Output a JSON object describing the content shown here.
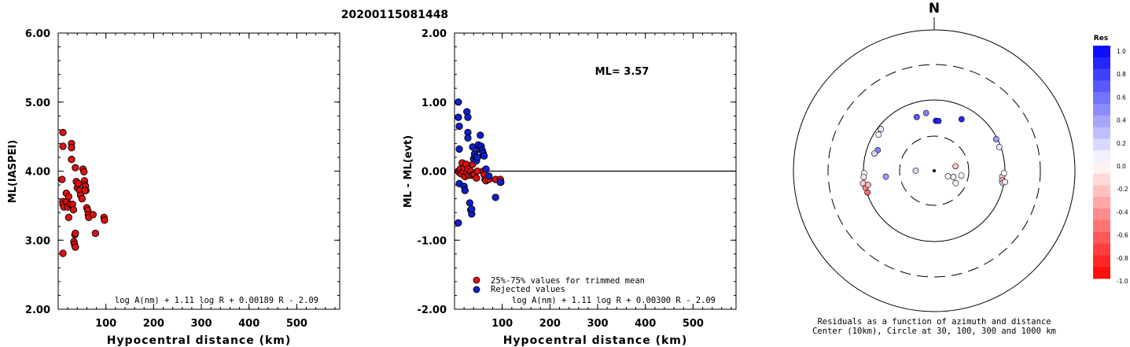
{
  "title": "20200115081448",
  "chart_data": [
    {
      "type": "scatter",
      "ylabel": "ML(IASPEI)",
      "xlabel": "Hypocentral distance (km)",
      "xlim": [
        0,
        590
      ],
      "ylim": [
        2.0,
        6.0
      ],
      "xticks": [
        "100",
        "200",
        "300",
        "400",
        "500"
      ],
      "yticks": [
        "2.00",
        "3.00",
        "4.00",
        "5.00",
        "6.00"
      ],
      "formula": "log A(nm) + 1.11 log R + 0.00189 R - 2.09",
      "grid": false,
      "series": [
        {
          "color": "#dd1111",
          "points": [
            [
              10,
              4.56
            ],
            [
              10,
              4.36
            ],
            [
              8,
              3.88
            ],
            [
              10,
              3.56
            ],
            [
              10,
              3.52
            ],
            [
              12,
              3.48
            ],
            [
              10,
              2.81
            ],
            [
              17,
              3.68
            ],
            [
              18,
              3.56
            ],
            [
              20,
              3.48
            ],
            [
              22,
              3.63
            ],
            [
              22,
              3.33
            ],
            [
              25,
              3.52
            ],
            [
              28,
              4.4
            ],
            [
              28,
              4.34
            ],
            [
              28,
              4.17
            ],
            [
              30,
              3.52
            ],
            [
              32,
              3.44
            ],
            [
              33,
              2.98
            ],
            [
              34,
              2.94
            ],
            [
              35,
              3.08
            ],
            [
              36,
              3.1
            ],
            [
              36,
              2.9
            ],
            [
              36,
              4.05
            ],
            [
              38,
              3.85
            ],
            [
              40,
              3.76
            ],
            [
              42,
              3.82
            ],
            [
              45,
              3.72
            ],
            [
              47,
              3.65
            ],
            [
              50,
              3.6
            ],
            [
              52,
              4.03
            ],
            [
              54,
              3.99
            ],
            [
              55,
              3.86
            ],
            [
              56,
              3.8
            ],
            [
              57,
              3.78
            ],
            [
              58,
              3.72
            ],
            [
              56,
              3.72
            ],
            [
              60,
              3.47
            ],
            [
              62,
              3.43
            ],
            [
              63,
              3.37
            ],
            [
              64,
              3.33
            ],
            [
              73,
              3.37
            ],
            [
              78,
              3.1
            ],
            [
              96,
              3.33
            ],
            [
              97,
              3.29
            ]
          ]
        }
      ]
    },
    {
      "type": "scatter",
      "ylabel": "ML - ML(evt)",
      "xlabel": "Hypocentral distance (km)",
      "xlim": [
        0,
        590
      ],
      "ylim": [
        -2.0,
        2.0
      ],
      "xticks": [
        "100",
        "200",
        "300",
        "400",
        "500"
      ],
      "yticks": [
        "-2.00",
        "-1.00",
        "0.00",
        "1.00",
        "2.00"
      ],
      "annotation": "ML= 3.57",
      "formula": "log A(nm) + 1.11 log R + 0.00300 R - 2.09",
      "reference_line": 0.0,
      "legend": "bottom-left",
      "series": [
        {
          "name": "25%-75% values for trimmed mean",
          "color": "#dd1111",
          "points": [
            [
              8,
              0.0
            ],
            [
              10,
              -0.02
            ],
            [
              12,
              0.03
            ],
            [
              14,
              -0.04
            ],
            [
              16,
              0.12
            ],
            [
              18,
              0.0
            ],
            [
              20,
              0.05
            ],
            [
              22,
              -0.08
            ],
            [
              24,
              0.1
            ],
            [
              26,
              -0.02
            ],
            [
              28,
              0.03
            ],
            [
              30,
              -0.06
            ],
            [
              34,
              0.0
            ],
            [
              36,
              -0.06
            ],
            [
              38,
              0.1
            ],
            [
              40,
              -0.05
            ],
            [
              42,
              -0.05
            ],
            [
              46,
              -0.1
            ],
            [
              48,
              0.0
            ],
            [
              60,
              0.0
            ],
            [
              62,
              -0.05
            ],
            [
              64,
              -0.12
            ],
            [
              66,
              -0.14
            ],
            [
              72,
              -0.12
            ],
            [
              86,
              -0.12
            ],
            [
              96,
              -0.12
            ],
            [
              97,
              -0.16
            ]
          ]
        },
        {
          "name": "Rejected values",
          "color": "#0f1fcc",
          "points": [
            [
              8,
              1.0
            ],
            [
              8,
              0.78
            ],
            [
              10,
              0.65
            ],
            [
              10,
              0.32
            ],
            [
              8,
              -0.75
            ],
            [
              10,
              -0.18
            ],
            [
              20,
              -0.22
            ],
            [
              22,
              -0.28
            ],
            [
              26,
              0.86
            ],
            [
              28,
              0.78
            ],
            [
              28,
              0.56
            ],
            [
              28,
              0.48
            ],
            [
              32,
              -0.46
            ],
            [
              34,
              -0.56
            ],
            [
              36,
              -0.62
            ],
            [
              36,
              -0.55
            ],
            [
              38,
              0.35
            ],
            [
              40,
              0.18
            ],
            [
              42,
              0.25
            ],
            [
              44,
              0.21
            ],
            [
              46,
              0.15
            ],
            [
              48,
              0.2
            ],
            [
              50,
              0.38
            ],
            [
              52,
              0.32
            ],
            [
              54,
              0.52
            ],
            [
              56,
              0.36
            ],
            [
              58,
              0.3
            ],
            [
              60,
              0.26
            ],
            [
              62,
              0.22
            ],
            [
              66,
              0.03
            ],
            [
              72,
              -0.07
            ],
            [
              86,
              -0.38
            ],
            [
              96,
              -0.16
            ]
          ]
        }
      ]
    },
    {
      "type": "scatter",
      "subtype": "polar residual map",
      "north_label": "N",
      "circle_labels": "Center (10km), Circle at 30, 100, 300 and 1000 km",
      "caption_line1": "Residuals as a function of azimuth and distance",
      "caption_line2": "Center (10km), Circle at 30, 100, 300 and 1000 km",
      "colorbar": {
        "title": "Res",
        "ticks": [
          "1.0",
          "0.8",
          "0.6",
          "0.4",
          "0.2",
          "0.0",
          "-0.2",
          "-0.4",
          "-0.6",
          "-0.8",
          "-1.0"
        ],
        "range": [
          -1.0,
          1.0
        ]
      },
      "points": [
        {
          "azimuth": 63,
          "distance_km": 96,
          "residual": 0.4
        },
        {
          "azimuth": 70,
          "distance_km": 95,
          "residual": 0.1
        },
        {
          "azimuth": 28,
          "distance_km": 66,
          "residual": 0.85
        },
        {
          "azimuth": 342,
          "distance_km": 62,
          "residual": 0.65
        },
        {
          "azimuth": 352,
          "distance_km": 66,
          "residual": 0.5
        },
        {
          "azimuth": 2,
          "distance_km": 50,
          "residual": 0.9
        },
        {
          "azimuth": 5,
          "distance_km": 50,
          "residual": 0.85
        },
        {
          "azimuth": 303,
          "distance_km": 86,
          "residual": 0.05
        },
        {
          "azimuth": 308,
          "distance_km": 90,
          "residual": 0.1
        },
        {
          "azimuth": 290,
          "distance_km": 70,
          "residual": 0.5
        },
        {
          "azimuth": 286,
          "distance_km": 75,
          "residual": 0.15
        },
        {
          "azimuth": 263,
          "distance_km": 48,
          "residual": 0.4
        },
        {
          "azimuth": 270,
          "distance_km": 18,
          "residual": 0.15
        },
        {
          "azimuth": 268,
          "distance_km": 98,
          "residual": 0.0
        },
        {
          "azimuth": 265,
          "distance_km": 100,
          "residual": -0.1
        },
        {
          "azimuth": 260,
          "distance_km": 105,
          "residual": -0.2
        },
        {
          "azimuth": 256,
          "distance_km": 100,
          "residual": -0.45
        },
        {
          "azimuth": 252,
          "distance_km": 98,
          "residual": -0.6
        },
        {
          "azimuth": 258,
          "distance_km": 90,
          "residual": -0.3
        },
        {
          "azimuth": 120,
          "distance_km": 22,
          "residual": 0.05
        },
        {
          "azimuth": 108,
          "distance_km": 19,
          "residual": -0.1
        },
        {
          "azimuth": 100,
          "distance_km": 24,
          "residual": -0.05
        },
        {
          "azimuth": 112,
          "distance_km": 16,
          "residual": 0.05
        },
        {
          "azimuth": 78,
          "distance_km": 20,
          "residual": -0.25
        },
        {
          "azimuth": 95,
          "distance_km": 92,
          "residual": -0.15
        },
        {
          "azimuth": 98,
          "distance_km": 93,
          "residual": -0.3
        },
        {
          "azimuth": 92,
          "distance_km": 97,
          "residual": 0.0
        },
        {
          "azimuth": 100,
          "distance_km": 96,
          "residual": 0.2
        },
        {
          "azimuth": 99,
          "distance_km": 103,
          "residual": -0.1
        }
      ]
    }
  ]
}
